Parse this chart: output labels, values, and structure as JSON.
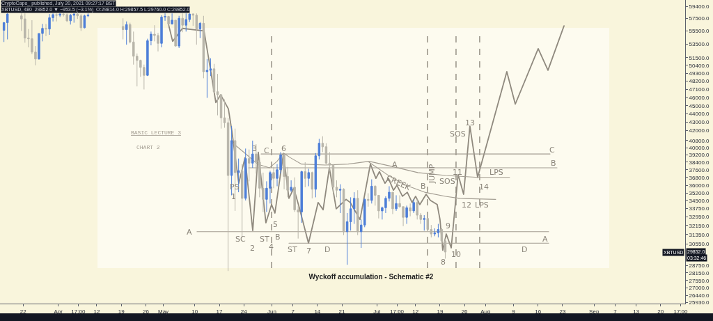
{
  "chart_data": {
    "type": "candlestick",
    "title": "Wyckoff accumulation - Schematic #2",
    "log": true,
    "xlim": [
      "2021-03-15T09:00",
      "2021-09-27T00:00"
    ],
    "xticks": [
      {
        "value": "2021-03-22",
        "label": "22"
      },
      {
        "value": "2021-04-01",
        "label": "Apr"
      },
      {
        "value": "2021-04-06T17:00",
        "label": "17:00"
      },
      {
        "value": "2021-04-12",
        "label": "12"
      },
      {
        "value": "2021-04-19",
        "label": "19"
      },
      {
        "value": "2021-04-26",
        "label": "26"
      },
      {
        "value": "2021-05-01",
        "label": "May"
      },
      {
        "value": "2021-05-10",
        "label": "10"
      },
      {
        "value": "2021-05-17",
        "label": "17"
      },
      {
        "value": "2021-05-24",
        "label": "24"
      },
      {
        "value": "2021-06-01",
        "label": "Jun"
      },
      {
        "value": "2021-06-07",
        "label": "7"
      },
      {
        "value": "2021-06-14",
        "label": "14"
      },
      {
        "value": "2021-06-21",
        "label": "21"
      },
      {
        "value": "2021-07-01",
        "label": "Jul"
      },
      {
        "value": "2021-07-06T17:00",
        "label": "17:00"
      },
      {
        "value": "2021-07-12",
        "label": "12"
      },
      {
        "value": "2021-07-19",
        "label": "19"
      },
      {
        "value": "2021-07-26",
        "label": "26"
      },
      {
        "value": "2021-08-01",
        "label": "Aug"
      },
      {
        "value": "2021-08-09",
        "label": "9"
      },
      {
        "value": "2021-08-16",
        "label": "16"
      },
      {
        "value": "2021-08-23",
        "label": "23"
      },
      {
        "value": "2021-09-01",
        "label": "Sep"
      },
      {
        "value": "2021-09-07",
        "label": "7"
      },
      {
        "value": "2021-09-13",
        "label": "13"
      },
      {
        "value": "2021-09-20",
        "label": "20"
      },
      {
        "value": "2021-09-25T17:00",
        "label": "17:00"
      }
    ],
    "ylim": [
      25830,
      60530
    ],
    "yticks": [
      {
        "value": 59400,
        "label": "59400.0"
      },
      {
        "value": 57500,
        "label": "57500.0"
      },
      {
        "value": 55500,
        "label": "55500.0"
      },
      {
        "value": 53500,
        "label": "53500.0"
      },
      {
        "value": 51500,
        "label": "51500.0"
      },
      {
        "value": 50400,
        "label": "50400.0"
      },
      {
        "value": 49300,
        "label": "49300.0"
      },
      {
        "value": 48200,
        "label": "48200.0"
      },
      {
        "value": 47100,
        "label": "47100.0"
      },
      {
        "value": 46000,
        "label": "46000.0"
      },
      {
        "value": 45000,
        "label": "45000.0"
      },
      {
        "value": 44000,
        "label": "44000.0"
      },
      {
        "value": 43000,
        "label": "43000.0"
      },
      {
        "value": 42000,
        "label": "42000.0"
      },
      {
        "value": 40800,
        "label": "40800.0"
      },
      {
        "value": 40000,
        "label": "40000.0"
      },
      {
        "value": 39200,
        "label": "39200.0"
      },
      {
        "value": 38400,
        "label": "38400.0"
      },
      {
        "value": 37600,
        "label": "37600.0"
      },
      {
        "value": 36800,
        "label": "36800.0"
      },
      {
        "value": 36000,
        "label": "36000.0"
      },
      {
        "value": 35200,
        "label": "35200.0"
      },
      {
        "value": 34500,
        "label": "34500.0"
      },
      {
        "value": 33750,
        "label": "33750.0"
      },
      {
        "value": 32950,
        "label": "32950.0"
      },
      {
        "value": 32150,
        "label": "32150.0"
      },
      {
        "value": 31350,
        "label": "31350.0"
      },
      {
        "value": 30550,
        "label": "30550.0"
      },
      {
        "value": 28750,
        "label": "28750.0"
      },
      {
        "value": 28150,
        "label": "28150.0"
      },
      {
        "value": 27550,
        "label": "27550.0"
      },
      {
        "value": 27000,
        "label": "27000.0"
      },
      {
        "value": 26440,
        "label": "26440.0"
      },
      {
        "value": 25930,
        "label": "25930.0"
      }
    ],
    "x": [
      "2021-03-16T12:00",
      "2021-03-17T12:00",
      "2021-03-21T12:00",
      "2021-03-22T12:00",
      "2021-03-23T12:00",
      "2021-03-24T12:00",
      "2021-03-25T12:00",
      "2021-03-26T12:00",
      "2021-03-27T12:00",
      "2021-03-28T12:00",
      "2021-03-29T12:00",
      "2021-03-30T12:00",
      "2021-03-31T12:00",
      "2021-04-01T12:00",
      "2021-04-02T12:00",
      "2021-04-03T12:00",
      "2021-04-04T12:00",
      "2021-04-05T12:00",
      "2021-04-06T12:00",
      "2021-04-07T12:00",
      "2021-04-08T12:00",
      "2021-04-09T12:00",
      "2021-04-19T12:00",
      "2021-04-20T12:00",
      "2021-04-21T12:00",
      "2021-04-22T12:00",
      "2021-04-23T12:00",
      "2021-04-24T12:00",
      "2021-04-25T12:00",
      "2021-04-26T12:00",
      "2021-04-27T12:00",
      "2021-04-28T12:00",
      "2021-04-29T12:00",
      "2021-04-30T12:00",
      "2021-05-01T12:00",
      "2021-05-02T12:00",
      "2021-05-03T12:00",
      "2021-05-04T12:00",
      "2021-05-05T12:00",
      "2021-05-06T12:00",
      "2021-05-07T12:00",
      "2021-05-08T12:00",
      "2021-05-09T12:00",
      "2021-05-10T12:00",
      "2021-05-11T12:00",
      "2021-05-12T12:00",
      "2021-05-13T12:00",
      "2021-05-14T12:00",
      "2021-05-15T12:00",
      "2021-05-16T12:00",
      "2021-05-17T12:00",
      "2021-05-18T12:00",
      "2021-05-19T12:00",
      "2021-05-20T12:00",
      "2021-05-21T12:00",
      "2021-05-22T12:00",
      "2021-05-23T12:00",
      "2021-05-24T12:00",
      "2021-05-25T12:00",
      "2021-05-26T12:00",
      "2021-05-27T12:00",
      "2021-05-28T12:00",
      "2021-05-29T12:00",
      "2021-05-30T12:00",
      "2021-05-31T12:00",
      "2021-06-01T12:00",
      "2021-06-02T12:00",
      "2021-06-03T12:00",
      "2021-06-04T12:00",
      "2021-06-05T12:00",
      "2021-06-06T12:00",
      "2021-06-07T12:00",
      "2021-06-08T12:00",
      "2021-06-09T12:00",
      "2021-06-10T12:00",
      "2021-06-11T12:00",
      "2021-06-12T12:00",
      "2021-06-13T12:00",
      "2021-06-14T12:00",
      "2021-06-15T12:00",
      "2021-06-16T12:00",
      "2021-06-17T12:00",
      "2021-06-18T12:00",
      "2021-06-19T12:00",
      "2021-06-20T12:00",
      "2021-06-21T12:00",
      "2021-06-22T12:00",
      "2021-06-23T12:00",
      "2021-06-24T12:00",
      "2021-06-25T12:00",
      "2021-06-26T12:00",
      "2021-06-27T12:00",
      "2021-06-28T12:00",
      "2021-06-29T12:00",
      "2021-06-30T12:00",
      "2021-07-01T12:00",
      "2021-07-02T12:00",
      "2021-07-03T12:00",
      "2021-07-04T12:00",
      "2021-07-05T12:00",
      "2021-07-06T12:00",
      "2021-07-07T12:00",
      "2021-07-08T12:00",
      "2021-07-09T12:00",
      "2021-07-10T12:00",
      "2021-07-11T12:00",
      "2021-07-12T12:00",
      "2021-07-13T12:00",
      "2021-07-14T12:00",
      "2021-07-15T12:00",
      "2021-07-16T12:00",
      "2021-07-17T12:00",
      "2021-07-18T12:00",
      "2021-07-19T12:00",
      "2021-07-20T12:00"
    ],
    "ohlc": [
      [
        55600,
        56900,
        53800,
        56800
      ],
      [
        56800,
        58300,
        54200,
        58200
      ],
      [
        57900,
        58300,
        55500,
        57400
      ],
      [
        57400,
        58300,
        53700,
        54400
      ],
      [
        54400,
        55800,
        53000,
        54300
      ],
      [
        54300,
        57200,
        52000,
        52300
      ],
      [
        52300,
        53200,
        50400,
        51300
      ],
      [
        51300,
        55100,
        51200,
        55100
      ],
      [
        55100,
        56600,
        53900,
        55900
      ],
      [
        55900,
        56600,
        54700,
        55800
      ],
      [
        55800,
        58200,
        54900,
        57600
      ],
      [
        57600,
        58300,
        57000,
        58100
      ],
      [
        58100,
        58300,
        57000,
        58000
      ],
      [
        58000,
        58300,
        57700,
        58200
      ],
      [
        58200,
        58300,
        57800,
        58100
      ],
      [
        58100,
        58300,
        56900,
        57100
      ],
      [
        57100,
        58200,
        56500,
        58000
      ],
      [
        58000,
        58300,
        56800,
        58200
      ],
      [
        58200,
        58300,
        57400,
        57900
      ],
      [
        57900,
        58200,
        55500,
        56000
      ],
      [
        56000,
        58100,
        55900,
        57900
      ],
      [
        57900,
        58300,
        57700,
        58000
      ],
      [
        56200,
        57500,
        54200,
        55700
      ],
      [
        55700,
        57000,
        53400,
        56500
      ],
      [
        56500,
        56800,
        53600,
        53800
      ],
      [
        53800,
        55400,
        50500,
        51700
      ],
      [
        51700,
        52100,
        47500,
        51100
      ],
      [
        51100,
        51200,
        48800,
        50100
      ],
      [
        50100,
        50500,
        47100,
        49000
      ],
      [
        49000,
        54300,
        48900,
        54000
      ],
      [
        54000,
        55400,
        53300,
        55000
      ],
      [
        55000,
        56400,
        53900,
        54800
      ],
      [
        54800,
        55200,
        52400,
        53600
      ],
      [
        53600,
        58000,
        53000,
        57700
      ],
      [
        57700,
        58300,
        57100,
        57800
      ],
      [
        57800,
        57900,
        56000,
        56600
      ],
      [
        56600,
        58300,
        56500,
        57200
      ],
      [
        57200,
        57200,
        53100,
        53200
      ],
      [
        53200,
        57900,
        52900,
        57500
      ],
      [
        57500,
        58300,
        55300,
        56400
      ],
      [
        56400,
        58300,
        55400,
        57300
      ],
      [
        57300,
        58300,
        56900,
        58200
      ],
      [
        58200,
        58300,
        56300,
        58000
      ],
      [
        58000,
        58300,
        53400,
        55800
      ],
      [
        55800,
        56900,
        54400,
        56700
      ],
      [
        56700,
        57900,
        48600,
        49500
      ],
      [
        49500,
        51300,
        46000,
        49700
      ],
      [
        49700,
        51400,
        48900,
        49900
      ],
      [
        49900,
        50600,
        46600,
        46800
      ],
      [
        46800,
        49200,
        43800,
        46400
      ],
      [
        46400,
        46500,
        42200,
        43500
      ],
      [
        43500,
        45800,
        42300,
        42900
      ],
      [
        42900,
        43500,
        28300,
        37000
      ],
      [
        37000,
        42500,
        35000,
        40800
      ],
      [
        40800,
        42200,
        33500,
        37300
      ],
      [
        37300,
        38800,
        35300,
        37500
      ],
      [
        37500,
        38200,
        31100,
        34700
      ],
      [
        34700,
        39900,
        34500,
        38800
      ],
      [
        38800,
        39800,
        36400,
        38300
      ],
      [
        38300,
        40800,
        37800,
        39300
      ],
      [
        39300,
        40400,
        37200,
        38400
      ],
      [
        38400,
        38900,
        34800,
        35700
      ],
      [
        35700,
        37300,
        33400,
        34600
      ],
      [
        34600,
        36400,
        33400,
        35700
      ],
      [
        35700,
        37500,
        34200,
        37300
      ],
      [
        37300,
        37900,
        35700,
        36700
      ],
      [
        36700,
        38200,
        35900,
        37600
      ],
      [
        37600,
        39500,
        37200,
        39200
      ],
      [
        39200,
        39300,
        35600,
        36900
      ],
      [
        36900,
        37900,
        34800,
        35500
      ],
      [
        35500,
        36500,
        35300,
        35800
      ],
      [
        35800,
        36800,
        33400,
        33600
      ],
      [
        33600,
        34000,
        31000,
        33400
      ],
      [
        33400,
        37500,
        32400,
        37400
      ],
      [
        37400,
        38400,
        35800,
        36700
      ],
      [
        36700,
        37700,
        35900,
        37300
      ],
      [
        37300,
        37400,
        34700,
        35600
      ],
      [
        35600,
        39400,
        34800,
        39100
      ],
      [
        39100,
        41000,
        38700,
        40500
      ],
      [
        40500,
        41300,
        39500,
        40100
      ],
      [
        40100,
        40500,
        38200,
        38300
      ],
      [
        38300,
        39500,
        37400,
        38100
      ],
      [
        38100,
        38200,
        35200,
        35800
      ],
      [
        35800,
        36500,
        34800,
        35500
      ],
      [
        35500,
        36100,
        33300,
        35600
      ],
      [
        35600,
        35700,
        31300,
        31600
      ],
      [
        31600,
        33300,
        28800,
        32500
      ],
      [
        32500,
        34800,
        31700,
        33700
      ],
      [
        33700,
        35300,
        32300,
        34700
      ],
      [
        34700,
        35500,
        31300,
        31600
      ],
      [
        31600,
        32700,
        30200,
        32200
      ],
      [
        32200,
        34700,
        32000,
        34600
      ],
      [
        34600,
        35200,
        33900,
        34500
      ],
      [
        34500,
        36600,
        34200,
        35900
      ],
      [
        35900,
        36000,
        34000,
        35000
      ],
      [
        35000,
        35000,
        32800,
        33500
      ],
      [
        33500,
        33900,
        32700,
        33800
      ],
      [
        33800,
        34900,
        33300,
        34700
      ],
      [
        34700,
        35900,
        34400,
        35300
      ],
      [
        35300,
        35300,
        33200,
        33700
      ],
      [
        33700,
        35000,
        33500,
        34200
      ],
      [
        34200,
        35000,
        33800,
        33900
      ],
      [
        33900,
        33900,
        32100,
        32900
      ],
      [
        32900,
        34000,
        32300,
        33800
      ],
      [
        33800,
        34200,
        33000,
        33500
      ],
      [
        33500,
        34600,
        33300,
        34300
      ],
      [
        34300,
        34600,
        32700,
        33100
      ],
      [
        33100,
        33300,
        32300,
        32700
      ],
      [
        32700,
        33100,
        31700,
        32800
      ],
      [
        32800,
        33200,
        31600,
        31800
      ],
      [
        31800,
        32200,
        31100,
        31400
      ],
      [
        31400,
        31900,
        31200,
        31500
      ],
      [
        31500,
        32300,
        31100,
        31800
      ],
      [
        31800,
        31900,
        30400,
        30800
      ],
      [
        30800,
        31000,
        29300,
        29852
      ]
    ],
    "colors": [
      "#4d7ed8",
      "#4d7ed8",
      "#b8b5aa",
      "#b8b5aa",
      "#b8b5aa",
      "#b8b5aa",
      "#b8b5aa",
      "#4d7ed8",
      "#4d7ed8",
      "#b8b5aa",
      "#4d7ed8",
      "#4d7ed8",
      "#b8b5aa",
      "#4d7ed8",
      "#b8b5aa",
      "#b8b5aa",
      "#4d7ed8",
      "#4d7ed8",
      "#b8b5aa",
      "#b8b5aa",
      "#4d7ed8",
      "#4d7ed8",
      "#b8b5aa",
      "#4d7ed8",
      "#b8b5aa",
      "#b8b5aa",
      "#b8b5aa",
      "#b8b5aa",
      "#b8b5aa",
      "#4d7ed8",
      "#4d7ed8",
      "#b8b5aa",
      "#b8b5aa",
      "#4d7ed8",
      "#4d7ed8",
      "#b8b5aa",
      "#4d7ed8",
      "#b8b5aa",
      "#4d7ed8",
      "#b8b5aa",
      "#4d7ed8",
      "#4d7ed8",
      "#b8b5aa",
      "#b8b5aa",
      "#4d7ed8",
      "#b8b5aa",
      "#4d7ed8",
      "#4d7ed8",
      "#b8b5aa",
      "#b8b5aa",
      "#b8b5aa",
      "#b8b5aa",
      "#b8b5aa",
      "#4d7ed8",
      "#b8b5aa",
      "#4d7ed8",
      "#b8b5aa",
      "#4d7ed8",
      "#b8b5aa",
      "#4d7ed8",
      "#b8b5aa",
      "#b8b5aa",
      "#b8b5aa",
      "#4d7ed8",
      "#4d7ed8",
      "#b8b5aa",
      "#4d7ed8",
      "#4d7ed8",
      "#b8b5aa",
      "#b8b5aa",
      "#4d7ed8",
      "#b8b5aa",
      "#b8b5aa",
      "#4d7ed8",
      "#b8b5aa",
      "#4d7ed8",
      "#b8b5aa",
      "#4d7ed8",
      "#4d7ed8",
      "#b8b5aa",
      "#b8b5aa",
      "#b8b5aa",
      "#b8b5aa",
      "#b8b5aa",
      "#4d7ed8",
      "#b8b5aa",
      "#4d7ed8",
      "#4d7ed8",
      "#4d7ed8",
      "#b8b5aa",
      "#4d7ed8",
      "#4d7ed8",
      "#b8b5aa",
      "#4d7ed8",
      "#b8b5aa",
      "#b8b5aa",
      "#4d7ed8",
      "#4d7ed8",
      "#4d7ed8",
      "#b8b5aa",
      "#4d7ed8",
      "#b8b5aa",
      "#b8b5aa",
      "#4d7ed8",
      "#b8b5aa",
      "#4d7ed8",
      "#b8b5aa",
      "#b8b5aa",
      "#4d7ed8",
      "#b8b5aa",
      "#b8b5aa",
      "#4d7ed8",
      "#4d7ed8",
      "#b8b5aa",
      "#b8b5aa"
    ],
    "series": [
      {
        "type": "line",
        "color": "#8f897e",
        "x": [
          "2021-05-02T12:00",
          "2021-05-03T16:00",
          "2021-05-06T11:00",
          "2021-05-12T15:00",
          "2021-05-14T10:00",
          "2021-05-16T00:00",
          "2021-05-17T09:00",
          "2021-05-19T14:00",
          "2021-05-20T14:00",
          "2021-05-22T13:00",
          "2021-05-24T08:00",
          "2021-05-26T13:00",
          "2021-05-28T03:00",
          "2021-05-30T07:00",
          "2021-05-31T22:00",
          "2021-06-01T21:00",
          "2021-06-04T07:00",
          "2021-06-05T21:00",
          "2021-06-07T06:00",
          "2021-06-08T20:00",
          "2021-06-11T11:00",
          "2021-06-14T05:00",
          "2021-06-15T15:00",
          "2021-06-17T10:00",
          "2021-06-19T09:00",
          "2021-06-22T04:00",
          "2021-06-23T09:00",
          "2021-06-26T04:00",
          "2021-06-29T03:00",
          "2021-06-30T17:00",
          "2021-07-01T17:00",
          "2021-07-03T07:00",
          "2021-07-04T07:00",
          "2021-07-05T17:00",
          "2021-07-06T17:00",
          "2021-07-08T07:00",
          "2021-07-09T16:00",
          "2021-07-11T01:00",
          "2021-07-12T01:00",
          "2021-07-13T06:00",
          "2021-07-15T01:00",
          "2021-07-16T06:00",
          "2021-07-18T05:00",
          "2021-07-19T00:00",
          "2021-07-19T19:00",
          "2021-07-20T19:00",
          "2021-07-22T05:00",
          "2021-07-24T04:00",
          "2021-07-25T18:00",
          "2021-07-27T13:00",
          "2021-07-29T18:00",
          "2021-08-07T02:00",
          "2021-08-09T12:00",
          "2021-08-16T01:00",
          "2021-08-18T20:00",
          "2021-08-23T10:00"
        ],
        "values": [
          56500,
          53900,
          55900,
          55500,
          50000,
          45400,
          46400,
          44600,
          41900,
          36200,
          38900,
          31700,
          39500,
          32400,
          34100,
          33300,
          39300,
          34700,
          35700,
          33800,
          30600,
          34300,
          33600,
          37800,
          33700,
          34600,
          34300,
          32700,
          38200,
          36700,
          37400,
          36200,
          36700,
          35500,
          36000,
          34900,
          35300,
          34300,
          34900,
          34100,
          35100,
          34500,
          34100,
          32700,
          30000,
          31400,
          30200,
          37100,
          35100,
          42500,
          36800,
          49500,
          45200,
          52800,
          49700,
          56300
        ]
      },
      {
        "type": "line",
        "color": "#a29c91",
        "x": [
          "2021-05-20T14:00",
          "2021-05-23T23:00",
          "2021-05-27T22:00",
          "2021-05-31T07:00",
          "2021-06-02T12:00",
          "2021-06-04T07:00",
          "2021-06-06T06:00",
          "2021-06-09T11:00",
          "2021-06-16T05:00",
          "2021-06-22T18:00",
          "2021-06-28T18:00",
          "2021-07-04T17:00",
          "2021-07-12T16:00",
          "2021-07-20T14:00",
          "2021-07-29T23:00",
          "2021-08-07T21:00"
        ],
        "values": [
          40600,
          39500,
          38200,
          37800,
          38500,
          39400,
          38900,
          38200,
          38100,
          38200,
          38500,
          38000,
          37300,
          37000,
          36800,
          36800
        ]
      },
      {
        "type": "line",
        "color": "#a29c91",
        "x": [
          "2021-06-28T18:00",
          "2021-07-04T17:00",
          "2021-07-09T06:00",
          "2021-07-14T15:00",
          "2021-07-20T14:00",
          "2021-07-24T14:00",
          "2021-08-03T22:00"
        ],
        "values": [
          38400,
          36900,
          36000,
          35300,
          34900,
          34700,
          34600
        ]
      },
      {
        "type": "line",
        "color": "#a29c91",
        "x": [
          "2021-05-28T22:00",
          "2021-08-19T10:00"
        ],
        "values": [
          39300,
          39300
        ]
      },
      {
        "type": "line",
        "color": "#a29c91",
        "x": [
          "2021-05-25T08:00",
          "2021-08-21T10:00"
        ],
        "values": [
          37800,
          37800
        ]
      },
      {
        "type": "line",
        "color": "#a29c91",
        "x": [
          "2021-05-10T15:00",
          "2021-08-19T01:00"
        ],
        "values": [
          31600,
          31600
        ]
      },
      {
        "type": "line",
        "color": "#a29c91",
        "x": [
          "2021-06-05T21:00",
          "2021-08-19T01:00"
        ],
        "values": [
          30600,
          30600
        ]
      }
    ],
    "ref_lines": [
      {
        "axis": "x",
        "value": "2021-05-31T22:00",
        "line_style": "dashed",
        "color": "#8f897e"
      },
      {
        "axis": "x",
        "value": "2021-07-15T10:00",
        "line_style": "dashed",
        "color": "#8f897e"
      },
      {
        "axis": "x",
        "value": "2021-07-23T14:00",
        "line_style": "dashed",
        "color": "#8f897e"
      },
      {
        "axis": "x",
        "value": "2021-07-30T08:00",
        "line_style": "dashed",
        "color": "#8f897e"
      }
    ],
    "annotations": [
      "CryptoCapo_ published, July 20, 2021 09:27:17 BST",
      "XBTUSD, 480  29852.0 ▼ −953.5 (−3.1%)  O:29814.0 H:29857.5 L:29760.0 C:29852.0",
      "BASIC LECTURE 3",
      "CHART 2",
      "PS",
      "1",
      "SC",
      "2",
      "3",
      "C",
      "6",
      "ST",
      "4",
      "5",
      "B",
      "ST",
      "7",
      "D",
      "A",
      "A",
      "CREEK",
      "B",
      "JUMP",
      "SOS",
      "11",
      "SOS",
      "13",
      "12",
      "LPS",
      "14",
      "LPS",
      "C",
      "B",
      "A",
      "D",
      "8",
      "9",
      "10",
      "XBTUSD",
      "03:32:46",
      {
        "text": "29852.0",
        "y": 29852
      }
    ]
  }
}
